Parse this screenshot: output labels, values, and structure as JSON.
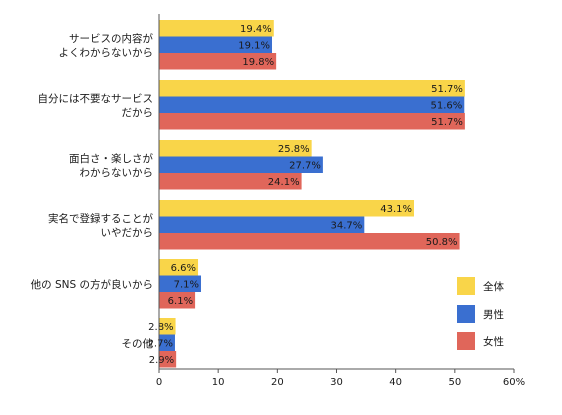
{
  "chart_data": {
    "type": "bar",
    "orientation": "horizontal",
    "categories": [
      [
        "サービスの内容が",
        "よくわからないから"
      ],
      [
        "自分には不要なサービス",
        "だから"
      ],
      [
        "面白さ・楽しさが",
        "わからないから"
      ],
      [
        "実名で登録することが",
        "いやだから"
      ],
      [
        "他の SNS の方が良いから"
      ],
      [
        "その他"
      ]
    ],
    "series": [
      {
        "name": "全体",
        "color": "#f9d549",
        "values": [
          19.4,
          51.7,
          25.8,
          43.1,
          6.6,
          2.8
        ],
        "labels": [
          "19.4%",
          "51.7%",
          "25.8%",
          "43.1%",
          "6.6%",
          "2.8%"
        ]
      },
      {
        "name": "男性",
        "color": "#3a6fd0",
        "values": [
          19.1,
          51.6,
          27.7,
          34.7,
          7.1,
          2.7
        ],
        "labels": [
          "19.1%",
          "51.6%",
          "27.7%",
          "34.7%",
          "7.1%",
          "2.7%"
        ]
      },
      {
        "name": "女性",
        "color": "#e0665a",
        "values": [
          19.8,
          51.7,
          24.1,
          50.8,
          6.1,
          2.9
        ],
        "labels": [
          "19.8%",
          "51.7%",
          "24.1%",
          "50.8%",
          "6.1%",
          "2.9%"
        ]
      }
    ],
    "x_ticks": [
      "0",
      "10",
      "20",
      "30",
      "40",
      "50",
      "60%"
    ],
    "xlim": [
      0,
      60
    ],
    "grid": false,
    "legend_position": "right"
  }
}
